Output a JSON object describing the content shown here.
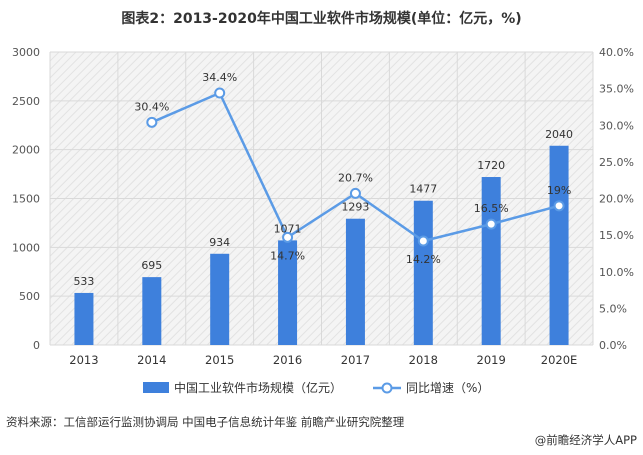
{
  "title": "图表2：2013-2020年中国工业软件市场规模(单位：亿元，%)",
  "source": "资料来源：工信部运行监测协调局  中国电子信息统计年鉴  前瞻产业研究院整理",
  "credit": "@前瞻经济学人APP",
  "colors": {
    "bar": "#3e80dc",
    "line": "#5b9be6",
    "marker_fill": "#ffffff",
    "grid": "#d9d9d9",
    "plot_bg": "#f4f4f4",
    "hatch": "#e2e2e2"
  },
  "chart_data": {
    "type": "bar",
    "categories": [
      "2013",
      "2014",
      "2015",
      "2016",
      "2017",
      "2018",
      "2019",
      "2020E"
    ],
    "series": [
      {
        "name": "中国工业软件市场规模（亿元）",
        "type": "bar",
        "axis": "left",
        "values": [
          533,
          695,
          934,
          1071,
          1293,
          1477,
          1720,
          2040
        ],
        "labels": [
          "533",
          "695",
          "934",
          "1071",
          "1293",
          "1477",
          "1720",
          "2040"
        ]
      },
      {
        "name": "同比增速（%）",
        "type": "line",
        "axis": "right",
        "values": [
          null,
          30.4,
          34.4,
          14.7,
          20.7,
          14.2,
          16.5,
          19.0
        ],
        "labels": [
          "",
          "30.4%",
          "34.4%",
          "14.7%",
          "20.7%",
          "14.2%",
          "16.5%",
          "19%"
        ]
      }
    ],
    "y_left": {
      "ylim": [
        0,
        3000
      ],
      "ticks": [
        0,
        500,
        1000,
        1500,
        2000,
        2500,
        3000
      ],
      "tick_labels": [
        "0",
        "500",
        "1000",
        "1500",
        "2000",
        "2500",
        "3000"
      ]
    },
    "y_right": {
      "ylim": [
        0,
        40
      ],
      "ticks": [
        0,
        5,
        10,
        15,
        20,
        25,
        30,
        35,
        40
      ],
      "tick_labels": [
        "0.0%",
        "5.0%",
        "10.0%",
        "15.0%",
        "20.0%",
        "25.0%",
        "30.0%",
        "35.0%",
        "40.0%"
      ]
    },
    "grid": true,
    "legend": "bottom"
  }
}
